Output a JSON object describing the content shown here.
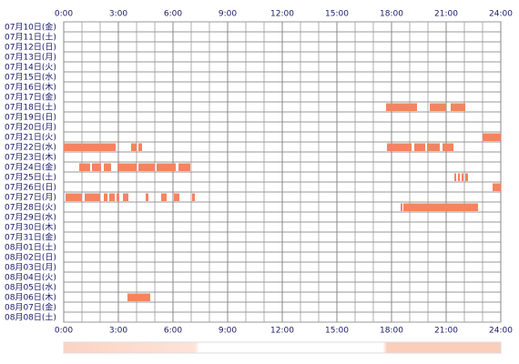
{
  "chart_data": {
    "type": "timeline",
    "categories": [
      "07月10日(金)",
      "07月11日(土)",
      "07月12日(日)",
      "07月13日(月)",
      "07月14日(火)",
      "07月15日(水)",
      "07月16日(木)",
      "07月17日(金)",
      "07月18日(土)",
      "07月19日(日)",
      "07月20日(月)",
      "07月21日(火)",
      "07月22日(水)",
      "07月23日(木)",
      "07月24日(金)",
      "07月25日(土)",
      "07月26日(日)",
      "07月27日(月)",
      "07月28日(火)",
      "07月29日(水)",
      "07月30日(木)",
      "07月31日(金)",
      "08月01日(土)",
      "08月02日(日)",
      "08月03日(月)",
      "08月04日(火)",
      "08月05日(水)",
      "08月06日(木)",
      "08月07日(金)",
      "08月08日(土)"
    ],
    "color": "#f4845f",
    "values": [
      [],
      [],
      [],
      [],
      [],
      [],
      [],
      [],
      [
        [
          17.7,
          19.4
        ],
        [
          20.1,
          21.0
        ],
        [
          21.25,
          22.05
        ]
      ],
      [],
      [],
      [
        [
          23.0,
          24.0
        ]
      ],
      [
        [
          0,
          2.85
        ],
        [
          3.7,
          4.0
        ],
        [
          4.1,
          4.3
        ],
        [
          17.75,
          19.1
        ],
        [
          19.25,
          19.85
        ],
        [
          19.95,
          20.65
        ],
        [
          20.8,
          21.4
        ]
      ],
      [],
      [
        [
          0.85,
          1.45
        ],
        [
          1.55,
          2.05
        ],
        [
          2.2,
          2.6
        ],
        [
          2.95,
          4.0
        ],
        [
          4.1,
          5.0
        ],
        [
          5.1,
          6.15
        ],
        [
          6.3,
          6.95
        ]
      ],
      [
        [
          21.45,
          21.55
        ],
        [
          21.65,
          21.75
        ],
        [
          21.85,
          21.95
        ],
        [
          22.05,
          22.2
        ]
      ],
      [
        [
          23.55,
          24.0
        ]
      ],
      [
        [
          0.1,
          1.0
        ],
        [
          1.15,
          2.0
        ],
        [
          2.2,
          2.4
        ],
        [
          2.5,
          2.8
        ],
        [
          2.9,
          3.05
        ],
        [
          3.25,
          3.55
        ],
        [
          4.5,
          4.65
        ],
        [
          5.35,
          5.65
        ],
        [
          6.05,
          6.35
        ],
        [
          7.05,
          7.2
        ]
      ],
      [
        [
          18.5,
          18.6
        ],
        [
          18.65,
          22.75
        ]
      ],
      [],
      [],
      [],
      [],
      [],
      [],
      [],
      [],
      [
        [
          3.5,
          4.75
        ]
      ],
      [],
      []
    ],
    "xlim": [
      0,
      24
    ],
    "xticks": [
      {
        "value": 0,
        "label": "0:00"
      },
      {
        "value": 3,
        "label": "3:00"
      },
      {
        "value": 6,
        "label": "6:00"
      },
      {
        "value": 9,
        "label": "9:00"
      },
      {
        "value": 12,
        "label": "12:00"
      },
      {
        "value": 15,
        "label": "15:00"
      },
      {
        "value": 18,
        "label": "18:00"
      },
      {
        "value": 21,
        "label": "21:00"
      },
      {
        "value": 24,
        "label": "24:00"
      }
    ],
    "grid": true
  }
}
